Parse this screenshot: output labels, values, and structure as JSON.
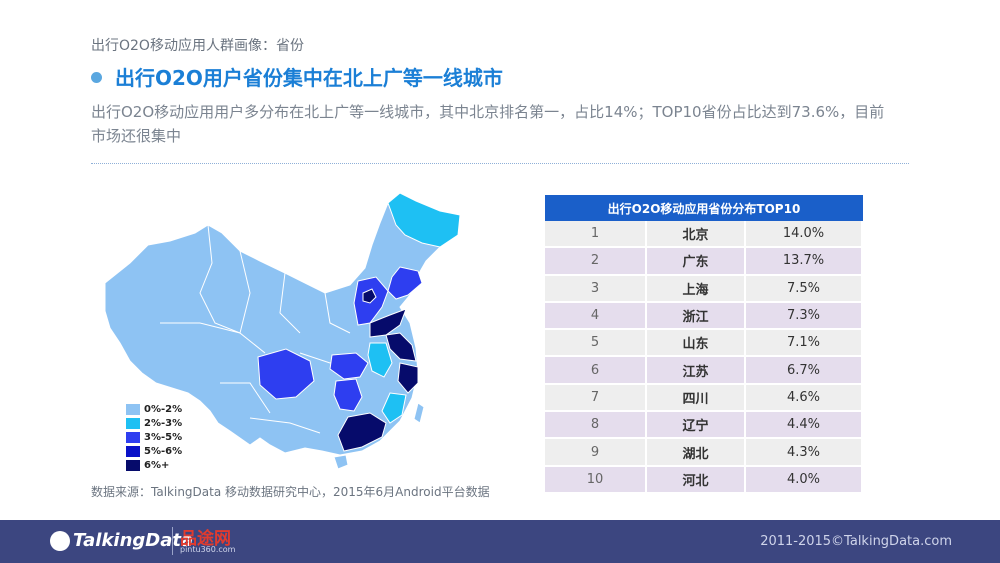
{
  "header": {
    "subtitle": "出行O2O移动应用人群画像：省份",
    "headline": "出行O2O用户省份集中在北上广等一线城市",
    "description": "出行O2O移动应用用户多分布在北上广等一线城市，其中北京排名第一，占比14%；TOP10省份占比达到73.6%，目前市场还很集中"
  },
  "legend": {
    "items": [
      {
        "label": "0%-2%",
        "color": "#8ec3f3"
      },
      {
        "label": "2%-3%",
        "color": "#1ec0f3"
      },
      {
        "label": "3%-5%",
        "color": "#2e3ef0"
      },
      {
        "label": "5%-6%",
        "color": "#0a12c8"
      },
      {
        "label": "6%+",
        "color": "#060b6b"
      }
    ]
  },
  "source": "数据来源：TalkingData 移动数据研究中心，2015年6月Android平台数据",
  "chart_data": {
    "type": "table",
    "title": "出行O2O移动应用省份分布TOP10",
    "rows": [
      {
        "rank": "1",
        "province": "北京",
        "share": "14.0%"
      },
      {
        "rank": "2",
        "province": "广东",
        "share": "13.7%"
      },
      {
        "rank": "3",
        "province": "上海",
        "share": "7.5%"
      },
      {
        "rank": "4",
        "province": "浙江",
        "share": "7.3%"
      },
      {
        "rank": "5",
        "province": "山东",
        "share": "7.1%"
      },
      {
        "rank": "6",
        "province": "江苏",
        "share": "6.7%"
      },
      {
        "rank": "7",
        "province": "四川",
        "share": "4.6%"
      },
      {
        "rank": "8",
        "province": "辽宁",
        "share": "4.4%"
      },
      {
        "rank": "9",
        "province": "湖北",
        "share": "4.3%"
      },
      {
        "rank": "10",
        "province": "河北",
        "share": "4.0%"
      }
    ]
  },
  "footer": {
    "logo": "TalkingData",
    "partner": "品途网",
    "partner_url": "pintu360.com",
    "copyright": "2011-2015©TalkingData.com"
  }
}
